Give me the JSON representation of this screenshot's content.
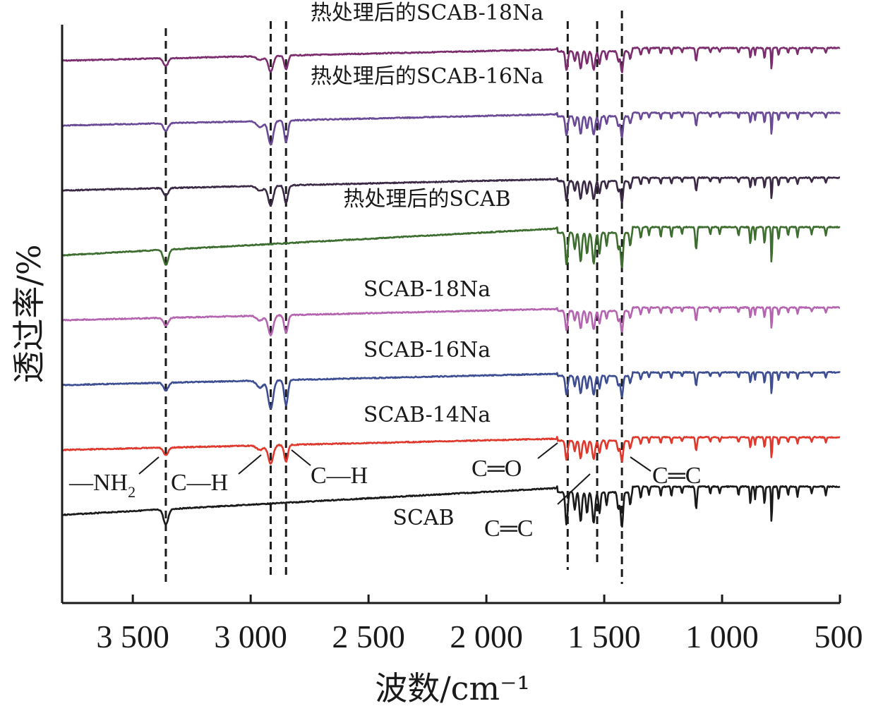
{
  "chart_data": {
    "type": "line",
    "xlabel": "波数/cm⁻¹",
    "ylabel": "透过率/%",
    "xlim": [
      3800,
      500
    ],
    "x_reversed": true,
    "x_ticks": [
      3500,
      3000,
      2500,
      2000,
      1500,
      1000,
      500
    ],
    "x_tick_labels": [
      "3 500",
      "3 000",
      "2 500",
      "2 000",
      "1 500",
      "1 000",
      "500"
    ],
    "y_ticks_shown": false,
    "grid": false,
    "legend": "none (series labeled inline)",
    "reference_lines_cm-1": [
      3360,
      2915,
      2850,
      1655,
      1530,
      1425
    ],
    "series": [
      {
        "name": "热处理后的SCAB-18Na",
        "color": "#7b2d6e",
        "offset": 7,
        "ch_strength": 0.55,
        "nh_strength": 0.5
      },
      {
        "name": "热处理后的SCAB-16Na",
        "color": "#6a4a96",
        "offset": 6,
        "ch_strength": 0.85,
        "nh_strength": 0.5
      },
      {
        "name": "",
        "color": "#3b2a45",
        "offset": 5,
        "ch_strength": 0.7,
        "nh_strength": 0.5
      },
      {
        "name": "热处理后的SCAB",
        "color": "#3d6e2f",
        "offset": 4,
        "ch_strength": 0.0,
        "nh_strength": 1.0
      },
      {
        "name": "SCAB-18Na",
        "color": "#b565b0",
        "offset": 3,
        "ch_strength": 0.7,
        "nh_strength": 0.5
      },
      {
        "name": "SCAB-16Na",
        "color": "#3e4e92",
        "offset": 2,
        "ch_strength": 1.0,
        "nh_strength": 0.5
      },
      {
        "name": "SCAB-14Na",
        "color": "#e0382c",
        "offset": 1,
        "ch_strength": 0.65,
        "nh_strength": 0.5
      },
      {
        "name": "SCAB",
        "color": "#1a1a1a",
        "offset": 0,
        "ch_strength": 0.0,
        "nh_strength": 1.0
      }
    ],
    "annotations": [
      {
        "text": "—NH",
        "sub": "2",
        "x": 3360
      },
      {
        "text": "C—H",
        "x": 2915
      },
      {
        "text": "C—H",
        "x": 2850
      },
      {
        "text": "C═O",
        "x": 1655
      },
      {
        "text": "C═C",
        "x": 1530
      },
      {
        "text": "C═C",
        "x": 1425
      }
    ]
  }
}
